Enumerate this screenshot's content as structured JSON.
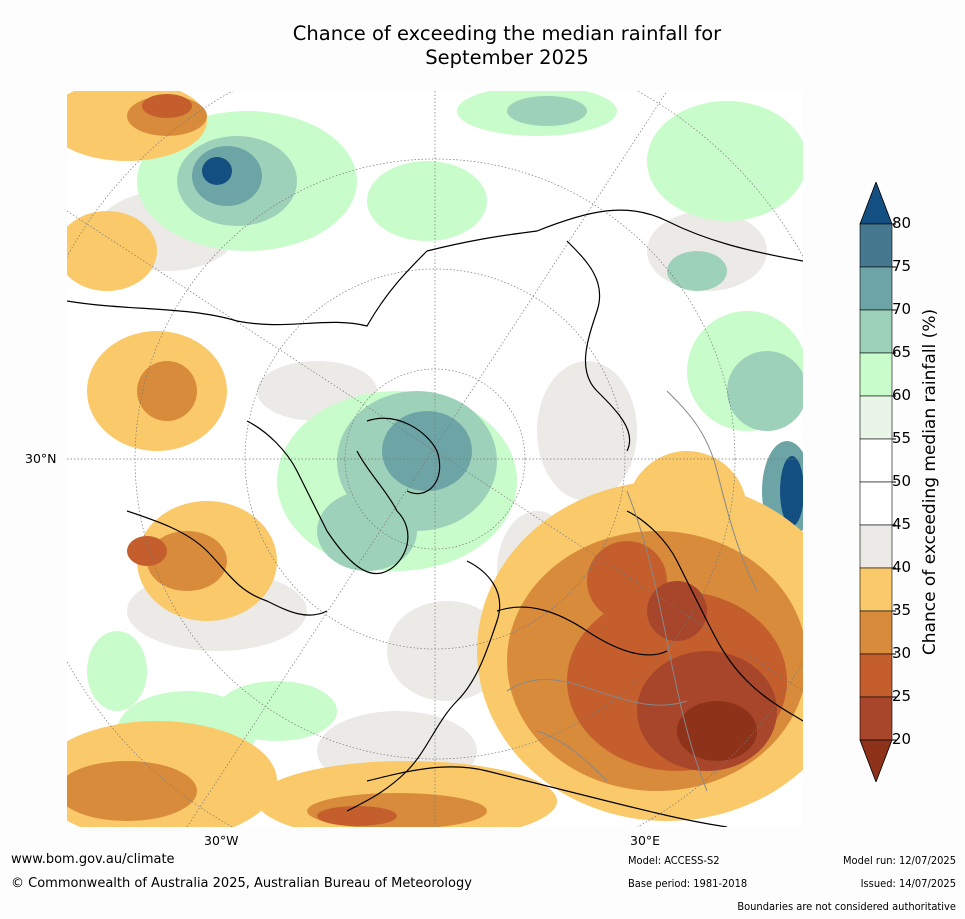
{
  "title": {
    "line1": "Chance of exceeding the median rainfall for",
    "line2": "September 2025"
  },
  "map": {
    "axis_labels": {
      "left": "30°N",
      "bottom_left": "30°W",
      "bottom_right": "30°E"
    }
  },
  "colorbar": {
    "label": "Chance of exceeding median rainfall (%)",
    "ticks": [
      "20",
      "25",
      "30",
      "35",
      "40",
      "45",
      "50",
      "55",
      "60",
      "65",
      "70",
      "75",
      "80"
    ],
    "colors": [
      "#8f321a",
      "#a7462a",
      "#c45f2d",
      "#d98b3c",
      "#fac96a",
      "#ebeae6",
      "#ffffff",
      "#ffffff",
      "#e9f5e7",
      "#c9fccb",
      "#9dd1b9",
      "#6da5a7",
      "#46788f",
      "#134f80"
    ]
  },
  "footer": {
    "website": "www.bom.gov.au/climate",
    "copyright": "© Commonwealth of Australia 2025, Australian Bureau of Meteorology",
    "model": "Model: ACCESS-S2",
    "base_period": "Base period: 1981-2018",
    "model_run": "Model run: 12/07/2025",
    "issued": "Issued: 14/07/2025",
    "disclaimer": "Boundaries are not considered authoritative"
  }
}
